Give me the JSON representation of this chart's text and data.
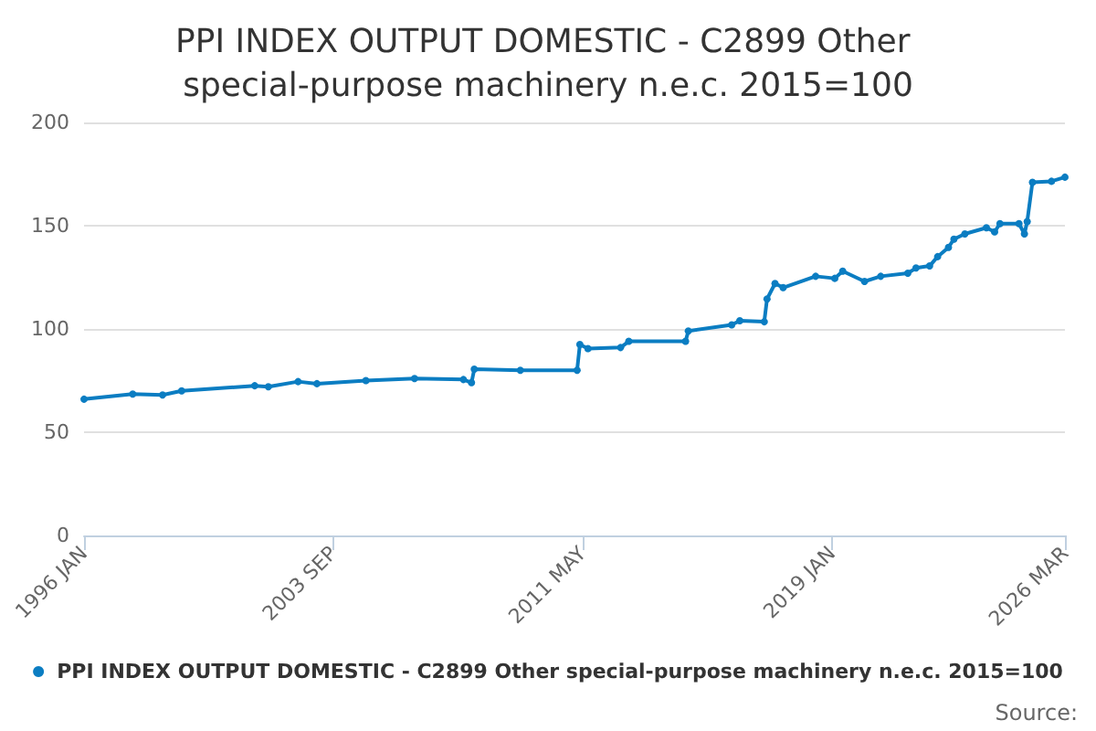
{
  "chart_data": {
    "type": "line",
    "title": "PPI INDEX OUTPUT DOMESTIC - C2899 Other special-purpose machinery n.e.c. 2015=100",
    "x": [
      "1996-01",
      "1997-07",
      "1998-06",
      "1999-01",
      "2001-04",
      "2001-09",
      "2002-08",
      "2003-03",
      "2004-09",
      "2006-03",
      "2007-09",
      "2007-12",
      "2008-01",
      "2009-06",
      "2011-03",
      "2011-04",
      "2011-07",
      "2012-07",
      "2012-10",
      "2014-07",
      "2014-08",
      "2015-12",
      "2016-03",
      "2016-12",
      "2017-01",
      "2017-04",
      "2017-07",
      "2018-07",
      "2019-02",
      "2019-05",
      "2020-01",
      "2020-07",
      "2021-05",
      "2021-08",
      "2022-01",
      "2022-04",
      "2022-08",
      "2022-10",
      "2023-02",
      "2023-10",
      "2024-01",
      "2024-03",
      "2024-10",
      "2024-12",
      "2025-01",
      "2025-03",
      "2025-10",
      "2026-03"
    ],
    "series": [
      {
        "name": "PPI INDEX OUTPUT DOMESTIC - C2899 Other special-purpose machinery n.e.c. 2015=100",
        "color": "#0b7dc2",
        "values": [
          66,
          68.5,
          68,
          70,
          72.5,
          72,
          74.5,
          73.5,
          75,
          76,
          75.5,
          74,
          80.5,
          80,
          80,
          92.5,
          90.5,
          91,
          94,
          94,
          99,
          102,
          104,
          103.5,
          114.5,
          122,
          120,
          125.5,
          124.5,
          128,
          123,
          125.5,
          127,
          129.5,
          130.5,
          135,
          139.5,
          143.5,
          146,
          149,
          147,
          151,
          151,
          146,
          152,
          171,
          171.5,
          173.5
        ]
      }
    ],
    "xlim": [
      "1996-01",
      "2026-03"
    ],
    "xticks": [
      {
        "value": "1996-01",
        "label": "1996 JAN"
      },
      {
        "value": "2003-09",
        "label": "2003 SEP"
      },
      {
        "value": "2011-05",
        "label": "2011 MAY"
      },
      {
        "value": "2019-01",
        "label": "2019 JAN"
      },
      {
        "value": "2026-03",
        "label": "2026 MAR"
      }
    ],
    "ylim": [
      0,
      200
    ],
    "yticks": [
      0,
      50,
      100,
      150,
      200
    ],
    "grid": "y",
    "legend": "bottom",
    "marker": "circle",
    "line_style": "solid",
    "annotations": [
      "Source:"
    ]
  }
}
